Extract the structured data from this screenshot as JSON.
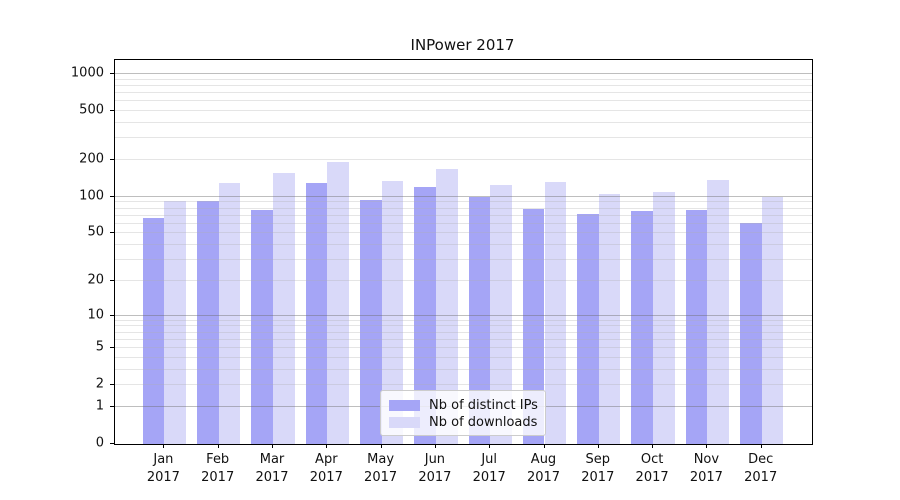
{
  "chart_data": {
    "type": "bar",
    "title": "INPower 2017",
    "x_categories": [
      "Jan",
      "Feb",
      "Mar",
      "Apr",
      "May",
      "Jun",
      "Jul",
      "Aug",
      "Sep",
      "Oct",
      "Nov",
      "Dec"
    ],
    "x_year_line": "2017",
    "series": [
      {
        "name": "Nb of distinct IPs",
        "color": "#a5a5f6",
        "values": [
          67,
          92,
          78,
          131,
          95,
          120,
          100,
          79,
          72,
          76,
          78,
          61
        ]
      },
      {
        "name": "Nb of downloads",
        "color": "#d9d9f9",
        "values": [
          93,
          131,
          157,
          192,
          134,
          168,
          125,
          132,
          106,
          110,
          138,
          99
        ]
      }
    ],
    "y_scale": "log1p",
    "ylim": [
      0,
      1300
    ],
    "y_ticks": [
      0,
      1,
      2,
      5,
      10,
      20,
      50,
      100,
      200,
      500,
      1000
    ],
    "grid_major": [
      1,
      10,
      100,
      1000
    ],
    "grid_minor": [
      2,
      3,
      4,
      5,
      6,
      7,
      8,
      9,
      20,
      30,
      40,
      50,
      60,
      70,
      80,
      90,
      200,
      300,
      400,
      500,
      600,
      700,
      800,
      900
    ],
    "grid": "on",
    "legend_position": "lower center",
    "colors": {
      "grid_major": "rgba(110,110,110,0.45)",
      "grid_minor": "rgba(175,175,175,0.33)",
      "spine": "#000000",
      "text": "#111111",
      "background": "#ffffff"
    }
  }
}
